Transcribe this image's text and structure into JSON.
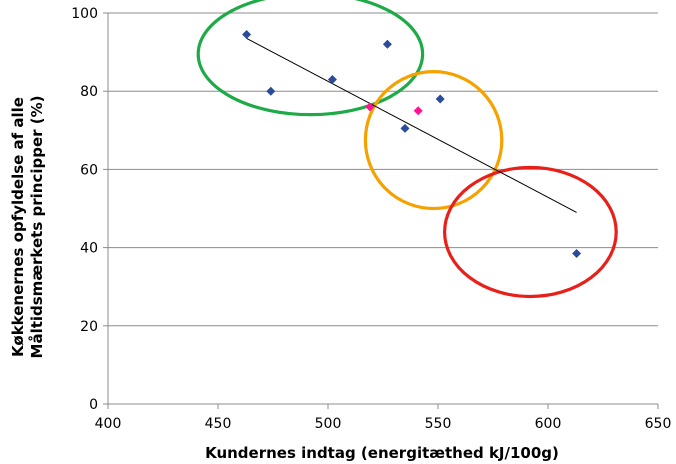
{
  "chart_data": {
    "type": "scatter",
    "xlabel": "Kundernes indtag (energitæthed kJ/100g)",
    "ylabel_line1": "Køkkenernes opfyldelse af alle",
    "ylabel_line2": "Måltidsmærkets principper (%)",
    "xlim": [
      400,
      650
    ],
    "ylim": [
      0,
      100
    ],
    "x_ticks": [
      400,
      450,
      500,
      550,
      600,
      650
    ],
    "y_ticks": [
      0,
      20,
      40,
      60,
      80,
      100
    ],
    "grid": "horizontal",
    "series": [
      {
        "color": "#2b4c9b",
        "marker": "diamond",
        "points": [
          {
            "x": 463,
            "y": 94.5
          },
          {
            "x": 474,
            "y": 80
          },
          {
            "x": 502,
            "y": 83
          },
          {
            "x": 527,
            "y": 92
          },
          {
            "x": 535,
            "y": 70.5
          },
          {
            "x": 551,
            "y": 78
          },
          {
            "x": 613,
            "y": 38.5
          }
        ]
      },
      {
        "color": "#ff1493",
        "marker": "diamond",
        "points": [
          {
            "x": 519,
            "y": 76
          },
          {
            "x": 541,
            "y": 75
          }
        ]
      }
    ],
    "trendline": {
      "x1": 463,
      "y1": 93.5,
      "x2": 613,
      "y2": 49,
      "color": "#000000"
    },
    "annotations": [
      {
        "shape": "ellipse",
        "color": "#1faa48",
        "cx": 492,
        "cy": 89.5,
        "rx": 51,
        "ry": 15.5
      },
      {
        "shape": "ellipse",
        "color": "#f5a200",
        "cx": 548,
        "cy": 67.5,
        "rx": 31,
        "ry": 17.5
      },
      {
        "shape": "ellipse",
        "color": "#e8201a",
        "cx": 592,
        "cy": 44,
        "rx": 39,
        "ry": 16.5
      }
    ]
  }
}
